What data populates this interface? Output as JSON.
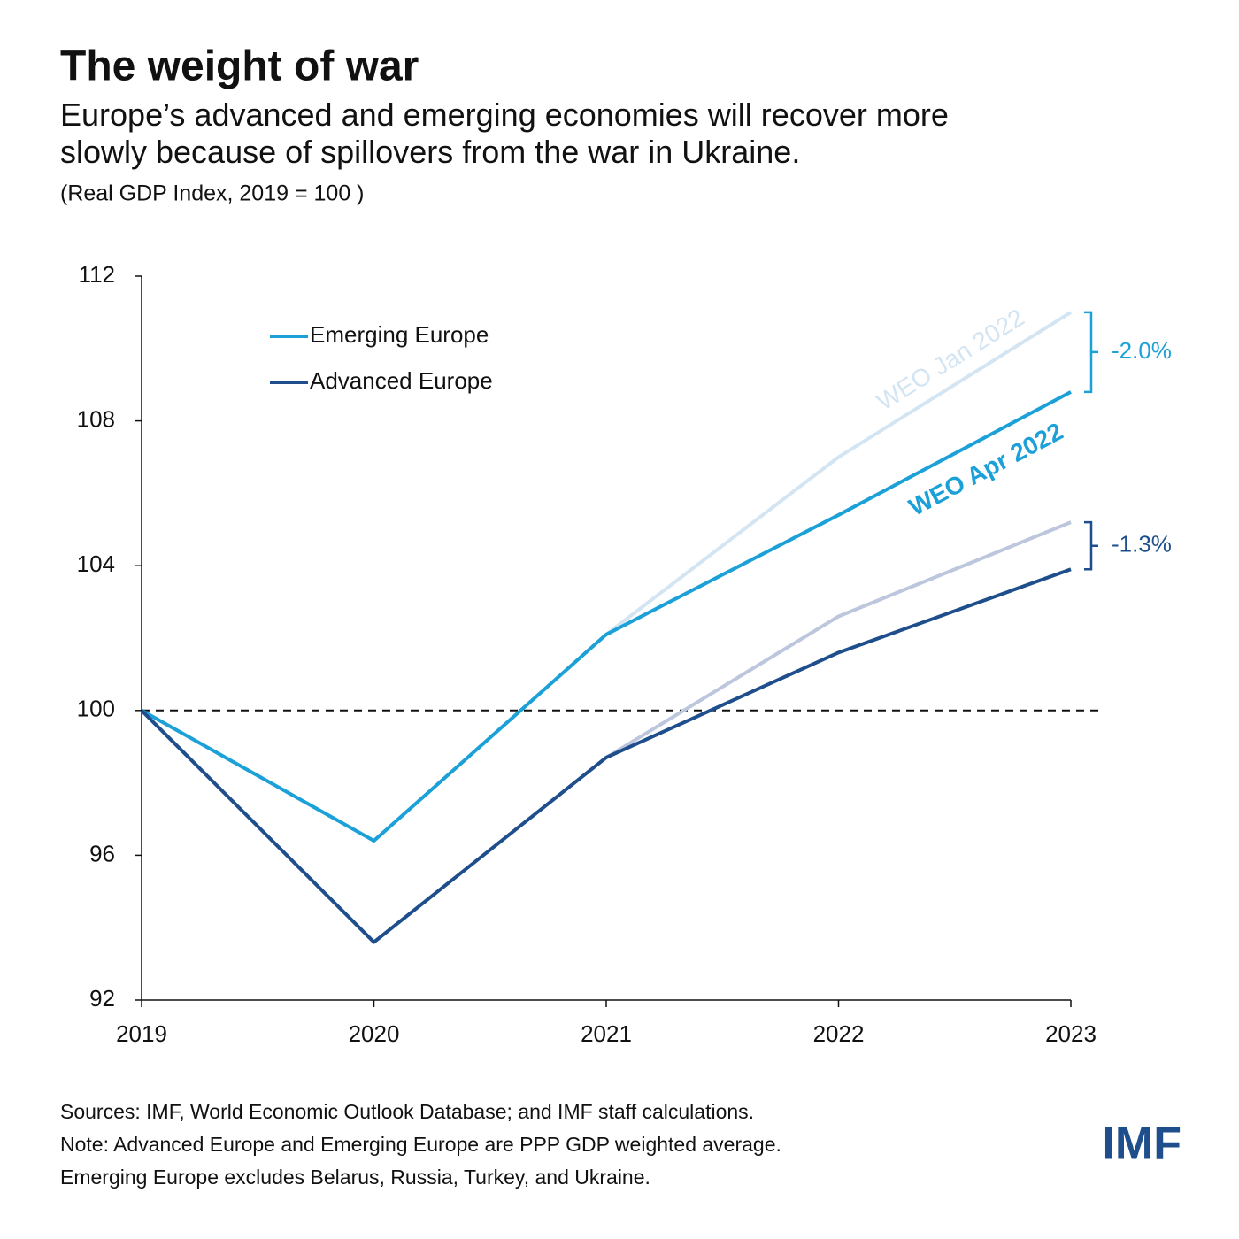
{
  "chart_data": {
    "type": "line",
    "title": "The weight of war",
    "subtitle": "Europe’s advanced and emerging economies will recover more slowly because of spillovers from the war in Ukraine.",
    "unit_note": "(Real GDP Index, 2019 = 100 )",
    "categories": [
      "2019",
      "2020",
      "2021",
      "2022",
      "2023"
    ],
    "ylim": [
      92,
      112
    ],
    "yticks": [
      92,
      96,
      100,
      104,
      108,
      112
    ],
    "reference_line": 100,
    "legend": "upper left",
    "series": [
      {
        "color": "#d3e5f2",
        "values": [
          null,
          null,
          102.1,
          107.0,
          111.0
        ]
      },
      {
        "color": "#bcc6dc",
        "values": [
          null,
          null,
          98.7,
          102.6,
          105.2
        ]
      },
      {
        "name": "Emerging Europe",
        "color": "#1ba1d8",
        "values": [
          100,
          96.4,
          102.1,
          105.4,
          108.8
        ]
      },
      {
        "name": "Advanced Europe",
        "color": "#1f4e8c",
        "values": [
          100,
          93.6,
          98.7,
          101.6,
          103.9
        ]
      }
    ],
    "annotations": [
      "WEO Jan 2022",
      "WEO Apr 2022",
      "-2.0%",
      "-1.3%"
    ],
    "notes": [
      "Sources: IMF, World Economic Outlook Database; and IMF staff calculations.",
      "Note: Advanced Europe and Emerging Europe are PPP GDP weighted average.",
      "Emerging Europe excludes Belarus, Russia, Turkey, and Ukraine."
    ],
    "logo": "IMF"
  }
}
